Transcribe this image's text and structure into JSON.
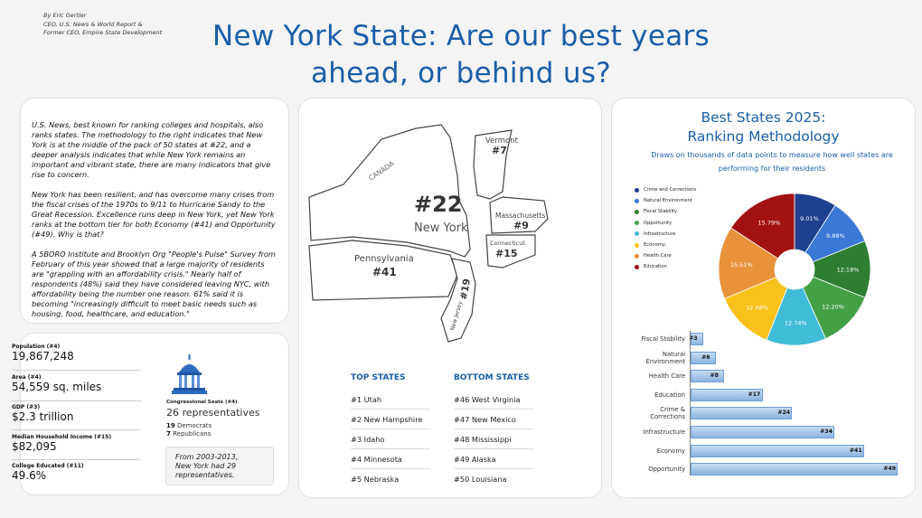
{
  "header": {
    "byline": [
      "By Eric Gertler",
      "CEO, U.S. News & World Report &",
      "Former CEO, Empire State Development"
    ],
    "title_line1": "New York State: Are our best years",
    "title_line2": "ahead, or behind us?"
  },
  "intro": {
    "paragraphs": [
      "U.S. News, best known for ranking colleges and hospitals, also ranks states. The methodology to the right indicates that New York is at the middle of the pack of 50 states at #22, and a deeper analysis indicates that while New York remains an important and vibrant state, there are many indicators that give rise to concern.",
      "New York has been resilient, and has overcome many crises from the fiscal crises of the 1970s to 9/11 to Hurricane Sandy to the Great Recession. Excellence runs deep in New York, yet New York ranks at the bottom tier for both Economy (#41) and Opportunity (#49). Why is that?",
      "A 5BORO Institute and Brooklyn Org \"People's Pulse\" Survey from February of this year showed that a large majority of residents are \"grappling with an affordability crisis.\" Nearly half of respondents (48%) said they have considered leaving NYC, with affordability being the number one reason. 61% said it is becoming \"increasingly difficult to meet basic needs such as housing, food, healthcare, and education.\""
    ]
  },
  "stats": [
    {
      "label": "Population (#4)",
      "value": "19,867,248"
    },
    {
      "label": "Area (#4)",
      "value": "54,559 sq. miles"
    },
    {
      "label": "GDP (#3)",
      "value": "$2.3 trillion"
    },
    {
      "label": "Median Household Income (#15)",
      "value": "$82,095"
    },
    {
      "label": "College Educated (#11)",
      "value": "49.6%"
    }
  ],
  "congress": {
    "label": "Congressional Seats (#4)",
    "value": "26 representatives",
    "dem_num": "19",
    "dem_label": " Democrats",
    "rep_num": "7",
    "rep_label": " Republicans",
    "note": [
      "From 2003-2013,",
      "New York had 29",
      "representatives."
    ]
  },
  "map": {
    "canada": "CANADA",
    "ny_rank": "#22",
    "ny_name": "New York",
    "vermont": "Vermont",
    "vermont_rank": "#7",
    "mass": "Massachusetts",
    "mass_rank": "#9",
    "conn": "Connecticut",
    "conn_rank": "#15",
    "penn": "Pennsylvania",
    "penn_rank": "#41",
    "nj": "New Jersey",
    "nj_rank": "#19"
  },
  "top_states": {
    "heading": "TOP STATES",
    "items": [
      "#1  Utah",
      "#2  New Hampshire",
      "#3  Idaho",
      "#4  Minnesota",
      "#5  Nebraska"
    ]
  },
  "bottom_states": {
    "heading": "BOTTOM STATES",
    "items": [
      "#46  West Virginia",
      "#47  New Mexico",
      "#48  Mississippi",
      "#49  Alaska",
      "#50  Louisiana"
    ]
  },
  "methodology": {
    "title_line1": "Best States 2025:",
    "title_line2": "Ranking Methodology",
    "sub_line1": "Draws on thousands of data points to measure how well states are",
    "sub_line2": "performing for their residents"
  },
  "chart_data": [
    {
      "type": "pie",
      "title": "",
      "categories": [
        "Crime and Corrections",
        "Natural Environment",
        "Fiscal Stability",
        "Opportunity",
        "Infrastructure",
        "Economy",
        "Health Care",
        "Education"
      ],
      "values": [
        9.01,
        9.88,
        12.18,
        12.2,
        12.74,
        12.68,
        15.51,
        15.79
      ],
      "labels": [
        "9.01%",
        "9.88%",
        "12.18%",
        "12.20%",
        "12.74%",
        "12.68%",
        "15.51%",
        "15.79%"
      ],
      "colors": [
        "#1f3f8f",
        "#3a78d6",
        "#2e7d32",
        "#43a047",
        "#3fbcd6",
        "#f9c21a",
        "#e8923a",
        "#a31212"
      ],
      "legend": "left"
    },
    {
      "type": "bar",
      "orientation": "horizontal",
      "categories": [
        "Fiscal Stability",
        "Natural Environment",
        "Health Care",
        "Education",
        "Crime & Corrections",
        "Infrastructure",
        "Economy",
        "Opportunity"
      ],
      "display_labels": [
        [
          "Fiscal Stability"
        ],
        [
          "Natural",
          "Environment"
        ],
        [
          "Health Care"
        ],
        [
          "Education"
        ],
        [
          "Crime &",
          "Corrections"
        ],
        [
          "Infrastructure"
        ],
        [
          "Economy"
        ],
        [
          "Opportunity"
        ]
      ],
      "values": [
        3,
        6,
        8,
        17,
        24,
        34,
        41,
        49
      ],
      "value_labels": [
        "#3",
        "#6",
        "#8",
        "#17",
        "#24",
        "#34",
        "#41",
        "#49"
      ],
      "xlim": [
        0,
        50
      ]
    }
  ]
}
